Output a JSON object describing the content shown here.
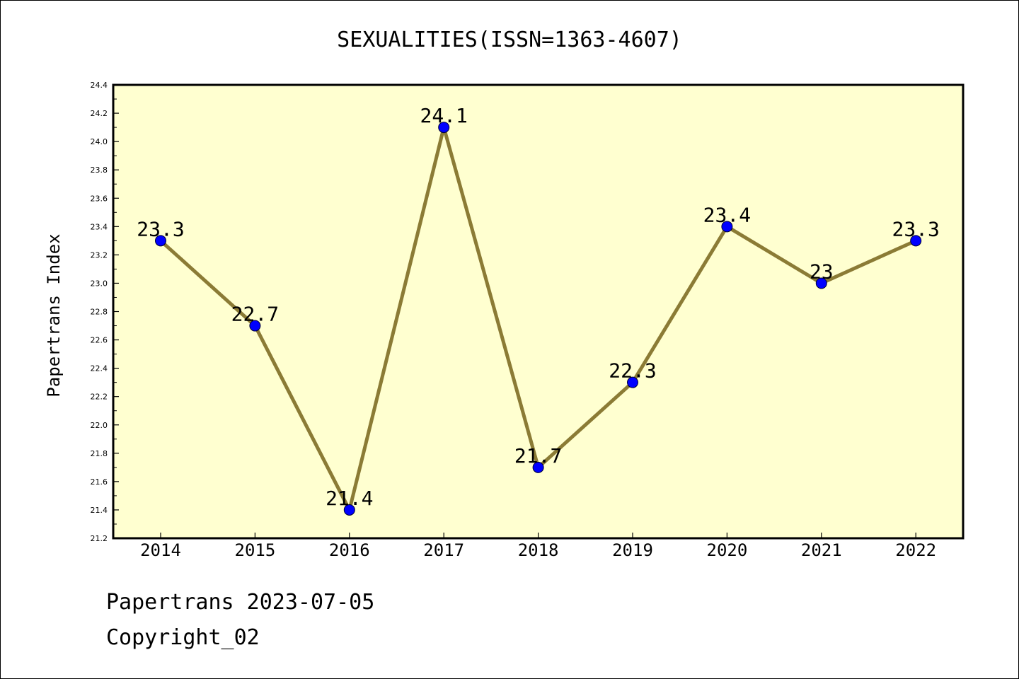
{
  "chart_data": {
    "type": "line",
    "title": "SEXUALITIES(ISSN=1363-4607)",
    "xlabel": "",
    "ylabel": "Papertrans Index",
    "categories": [
      "2014",
      "2015",
      "2016",
      "2017",
      "2018",
      "2019",
      "2020",
      "2021",
      "2022"
    ],
    "values": [
      23.3,
      22.7,
      21.4,
      24.1,
      21.7,
      22.3,
      23.4,
      23.0,
      23.3
    ],
    "data_labels": [
      "23.3",
      "22.7",
      "21.4",
      "24.1",
      "21.7",
      "22.3",
      "23.4",
      "23",
      "23.3"
    ],
    "ylim": [
      21.2,
      24.4
    ],
    "yticks": [
      "21.2",
      "21.4",
      "21.6",
      "21.8",
      "22.0",
      "22.2",
      "22.4",
      "22.6",
      "22.8",
      "23.0",
      "23.2",
      "23.4",
      "23.6",
      "23.8",
      "24.0",
      "24.2",
      "24.4"
    ],
    "grid": false,
    "legend": "none",
    "colors": {
      "line": "#8b7b35",
      "marker": "#0000ff",
      "plot_background": "#ffffd0"
    }
  },
  "footer": {
    "line1": "Papertrans 2023-07-05",
    "line2": "Copyright_02"
  }
}
